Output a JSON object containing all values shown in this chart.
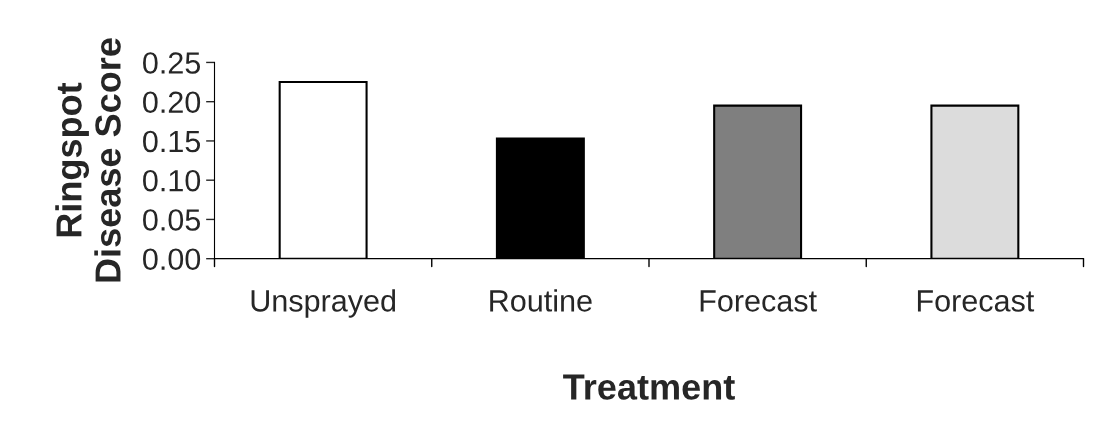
{
  "chart_data": {
    "type": "bar",
    "xlabel": "Treatment",
    "ylabel": "Ringspot\nDisease Score",
    "categories": [
      "Unsprayed",
      "Routine",
      "Forecast",
      "Forecast"
    ],
    "values": [
      0.225,
      0.153,
      0.195,
      0.195
    ],
    "colors": [
      "#ffffff",
      "#000000",
      "#7f7f7f",
      "#dcdcdc"
    ],
    "ylim": [
      0,
      0.25
    ],
    "yticks": [
      {
        "value": 0,
        "label": "0.00"
      },
      {
        "value": 0.05,
        "label": "0.05"
      },
      {
        "value": 0.1,
        "label": "0.10"
      },
      {
        "value": 0.15,
        "label": "0.15"
      },
      {
        "value": 0.2,
        "label": "0.20"
      },
      {
        "value": 0.25,
        "label": "0.25"
      }
    ],
    "grid": false,
    "legend": false
  }
}
